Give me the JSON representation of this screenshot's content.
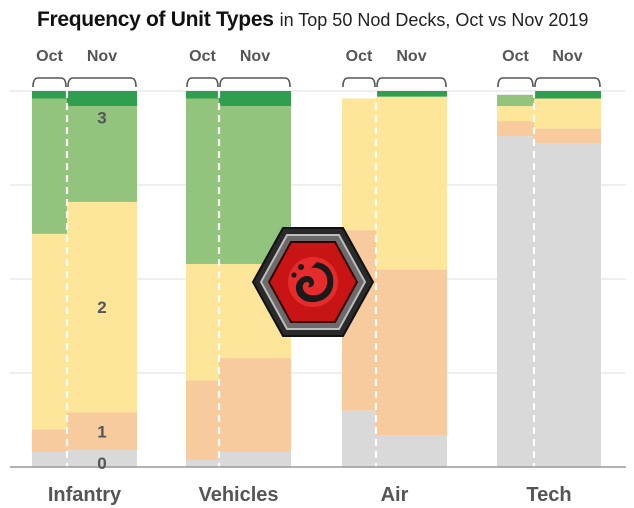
{
  "title": {
    "bold": "Frequency of Unit Types",
    "rest": "in Top 50 Nod Decks, Oct vs Nov 2019"
  },
  "colors": {
    "cost_0": "#d9d9d9",
    "cost_1": "#f8cb9e",
    "cost_2": "#fde59a",
    "cost_3": "#93c47d",
    "top": "#2f9e4f",
    "bracket": "#555555",
    "grid": "#dddddd",
    "baseline": "#999999"
  },
  "logo": "nod-faction-emblem",
  "chart_data": {
    "type": "bar",
    "stacked": true,
    "normalized": true,
    "categories": [
      "Infantry",
      "Vehicles",
      "Air",
      "Tech"
    ],
    "periods": [
      "Oct",
      "Nov"
    ],
    "ylim": [
      0,
      1
    ],
    "grid": true,
    "series": [
      {
        "name": "0",
        "color": "#d9d9d9",
        "values": {
          "Oct": [
            0.04,
            0.02,
            0.15,
            0.88
          ],
          "Nov": [
            0.045,
            0.04,
            0.085,
            0.86
          ]
        }
      },
      {
        "name": "1",
        "color": "#f8cb9e",
        "values": {
          "Oct": [
            0.06,
            0.21,
            0.48,
            0.04
          ],
          "Nov": [
            0.1,
            0.25,
            0.44,
            0.04
          ]
        }
      },
      {
        "name": "2",
        "color": "#fde59a",
        "values": {
          "Oct": [
            0.52,
            0.31,
            0.35,
            0.04
          ],
          "Nov": [
            0.56,
            0.25,
            0.46,
            0.08
          ]
        }
      },
      {
        "name": "3",
        "color": "#93c47d",
        "values": {
          "Oct": [
            0.36,
            0.44,
            0.0,
            0.03
          ],
          "Nov": [
            0.255,
            0.42,
            0.0,
            0.0
          ]
        }
      },
      {
        "name": "",
        "color": "#2f9e4f",
        "values": {
          "Oct": [
            0.02,
            0.02,
            0.0,
            0.0
          ],
          "Nov": [
            0.04,
            0.04,
            0.015,
            0.02
          ]
        }
      }
    ],
    "segment_labels": [
      "3",
      "2",
      "1",
      "0"
    ]
  }
}
